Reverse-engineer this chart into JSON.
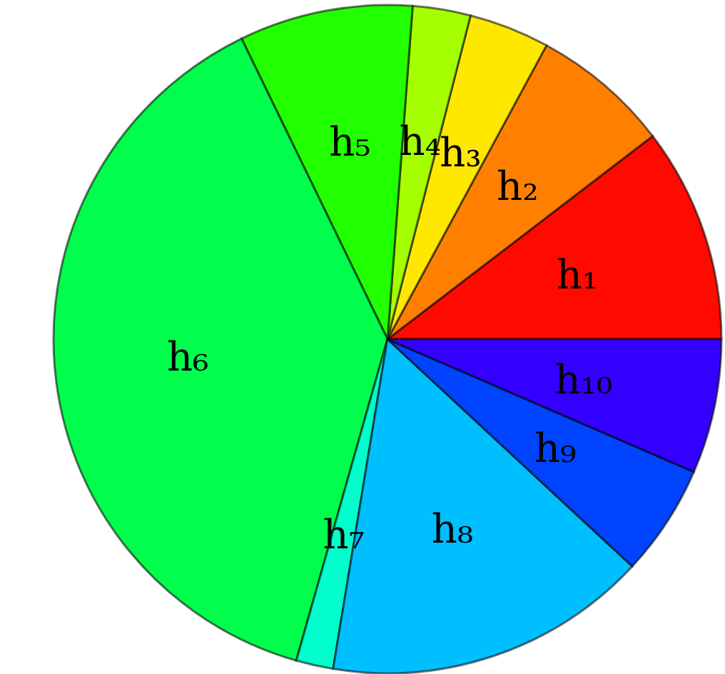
{
  "chart_data": {
    "type": "pie",
    "categories": [
      "h₁",
      "h₂",
      "h₃",
      "h₄",
      "h₅",
      "h₆",
      "h₇",
      "h₈",
      "h₉",
      "h₁₀"
    ],
    "values": [
      10.4,
      6.7,
      3.9,
      2.8,
      8.4,
      38.4,
      1.8,
      15.7,
      5.4,
      6.5
    ],
    "colors": [
      "#ff0a00",
      "#ff8000",
      "#ffe800",
      "#a6ff00",
      "#22ff00",
      "#00ff4c",
      "#00ffcc",
      "#00bfff",
      "#0044ff",
      "#3300ff"
    ]
  }
}
